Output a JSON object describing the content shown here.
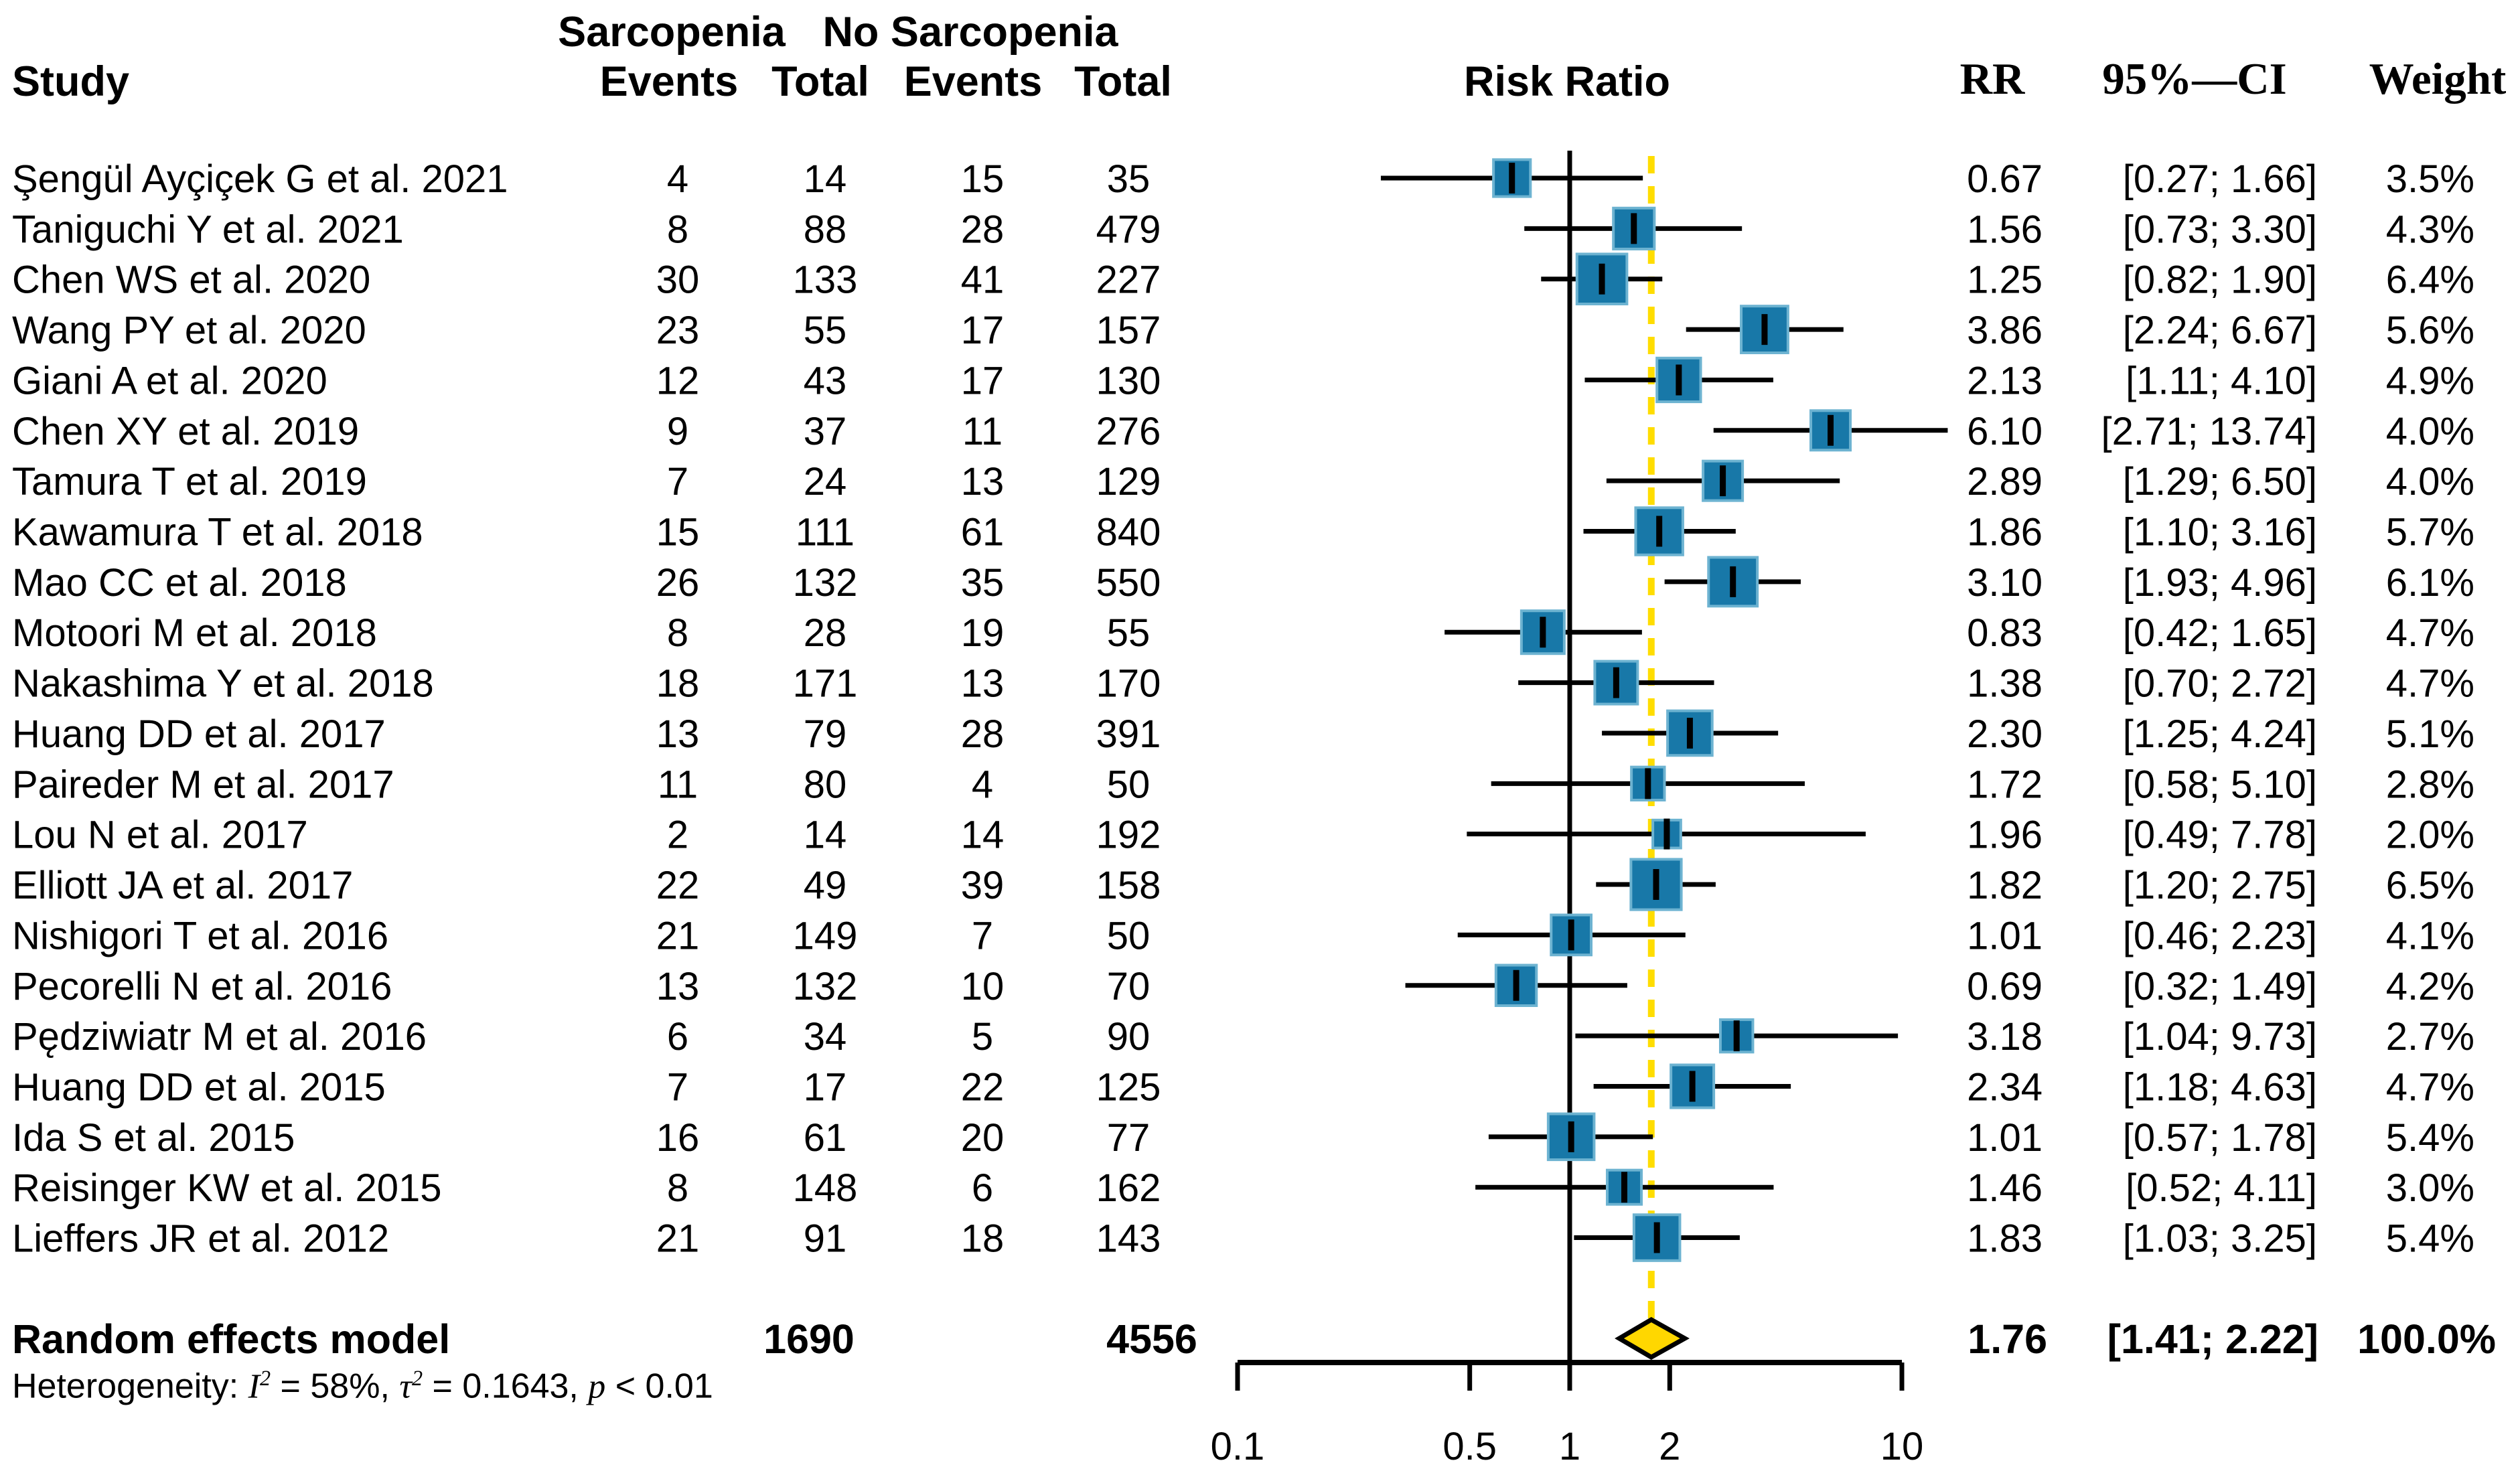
{
  "figure": {
    "headers": {
      "study": "Study",
      "group1": "Sarcopenia",
      "group2": "No Sarcopenia",
      "events1": "Events",
      "total1": "Total",
      "events2": "Events",
      "total2": "Total",
      "risk_ratio": "Risk Ratio",
      "rr": "RR",
      "ci": "95%—CI",
      "weight": "Weight"
    },
    "heterogeneity": {
      "prefix": "Heterogeneity: ",
      "i": "I",
      "i_sup": "2",
      "seg1": " = 58%, ",
      "tau": "τ",
      "tau_sup": "2",
      "seg2": " = 0.1643, ",
      "p": "p",
      "seg3": " < 0.01"
    }
  },
  "chart_data": {
    "type": "forest",
    "x_scale": "log10",
    "x_min": 0.1,
    "x_max": 10,
    "x_ticks": [
      0.1,
      0.5,
      1,
      2,
      10
    ],
    "x_tick_labels": [
      "0.1",
      "0.5",
      "1",
      "2",
      "10"
    ],
    "null_line": 1,
    "effect_measure": "Risk Ratio",
    "studies": [
      {
        "name": "Şengül Ayçiçek G et al. 2021",
        "e1": "4",
        "t1": "14",
        "e2": "15",
        "t2": "35",
        "rr": 0.67,
        "lo": 0.27,
        "hi": 1.66,
        "rr_label": "0.67",
        "ci_label": "[0.27; 1.66]",
        "weight": 3.5,
        "weight_label": "3.5%"
      },
      {
        "name": "Taniguchi Y et al. 2021",
        "e1": "8",
        "t1": "88",
        "e2": "28",
        "t2": "479",
        "rr": 1.56,
        "lo": 0.73,
        "hi": 3.3,
        "rr_label": "1.56",
        "ci_label": "[0.73; 3.30]",
        "weight": 4.3,
        "weight_label": "4.3%"
      },
      {
        "name": "Chen WS et al. 2020",
        "e1": "30",
        "t1": "133",
        "e2": "41",
        "t2": "227",
        "rr": 1.25,
        "lo": 0.82,
        "hi": 1.9,
        "rr_label": "1.25",
        "ci_label": "[0.82; 1.90]",
        "weight": 6.4,
        "weight_label": "6.4%"
      },
      {
        "name": "Wang PY et al. 2020",
        "e1": "23",
        "t1": "55",
        "e2": "17",
        "t2": "157",
        "rr": 3.86,
        "lo": 2.24,
        "hi": 6.67,
        "rr_label": "3.86",
        "ci_label": "[2.24; 6.67]",
        "weight": 5.6,
        "weight_label": "5.6%"
      },
      {
        "name": "Giani A et al. 2020",
        "e1": "12",
        "t1": "43",
        "e2": "17",
        "t2": "130",
        "rr": 2.13,
        "lo": 1.11,
        "hi": 4.1,
        "rr_label": "2.13",
        "ci_label": "[1.11; 4.10]",
        "weight": 4.9,
        "weight_label": "4.9%"
      },
      {
        "name": "Chen XY et al. 2019",
        "e1": "9",
        "t1": "37",
        "e2": "11",
        "t2": "276",
        "rr": 6.1,
        "lo": 2.71,
        "hi": 13.74,
        "rr_label": "6.10",
        "ci_label": "[2.71; 13.74]",
        "weight": 4.0,
        "weight_label": "4.0%"
      },
      {
        "name": "Tamura T et al. 2019",
        "e1": "7",
        "t1": "24",
        "e2": "13",
        "t2": "129",
        "rr": 2.89,
        "lo": 1.29,
        "hi": 6.5,
        "rr_label": "2.89",
        "ci_label": "[1.29; 6.50]",
        "weight": 4.0,
        "weight_label": "4.0%"
      },
      {
        "name": "Kawamura T et al. 2018",
        "e1": "15",
        "t1": "111",
        "e2": "61",
        "t2": "840",
        "rr": 1.86,
        "lo": 1.1,
        "hi": 3.16,
        "rr_label": "1.86",
        "ci_label": "[1.10; 3.16]",
        "weight": 5.7,
        "weight_label": "5.7%"
      },
      {
        "name": "Mao CC et al. 2018",
        "e1": "26",
        "t1": "132",
        "e2": "35",
        "t2": "550",
        "rr": 3.1,
        "lo": 1.93,
        "hi": 4.96,
        "rr_label": "3.10",
        "ci_label": "[1.93; 4.96]",
        "weight": 6.1,
        "weight_label": "6.1%"
      },
      {
        "name": "Motoori M et al. 2018",
        "e1": "8",
        "t1": "28",
        "e2": "19",
        "t2": "55",
        "rr": 0.83,
        "lo": 0.42,
        "hi": 1.65,
        "rr_label": "0.83",
        "ci_label": "[0.42; 1.65]",
        "weight": 4.7,
        "weight_label": "4.7%"
      },
      {
        "name": "Nakashima Y et al. 2018",
        "e1": "18",
        "t1": "171",
        "e2": "13",
        "t2": "170",
        "rr": 1.38,
        "lo": 0.7,
        "hi": 2.72,
        "rr_label": "1.38",
        "ci_label": "[0.70; 2.72]",
        "weight": 4.7,
        "weight_label": "4.7%"
      },
      {
        "name": "Huang DD et al. 2017",
        "e1": "13",
        "t1": "79",
        "e2": "28",
        "t2": "391",
        "rr": 2.3,
        "lo": 1.25,
        "hi": 4.24,
        "rr_label": "2.30",
        "ci_label": "[1.25; 4.24]",
        "weight": 5.1,
        "weight_label": "5.1%"
      },
      {
        "name": "Paireder M et al. 2017",
        "e1": "11",
        "t1": "80",
        "e2": "4",
        "t2": "50",
        "rr": 1.72,
        "lo": 0.58,
        "hi": 5.1,
        "rr_label": "1.72",
        "ci_label": "[0.58; 5.10]",
        "weight": 2.8,
        "weight_label": "2.8%"
      },
      {
        "name": "Lou N et al. 2017",
        "e1": "2",
        "t1": "14",
        "e2": "14",
        "t2": "192",
        "rr": 1.96,
        "lo": 0.49,
        "hi": 7.78,
        "rr_label": "1.96",
        "ci_label": "[0.49; 7.78]",
        "weight": 2.0,
        "weight_label": "2.0%"
      },
      {
        "name": "Elliott JA et al. 2017",
        "e1": "22",
        "t1": "49",
        "e2": "39",
        "t2": "158",
        "rr": 1.82,
        "lo": 1.2,
        "hi": 2.75,
        "rr_label": "1.82",
        "ci_label": "[1.20; 2.75]",
        "weight": 6.5,
        "weight_label": "6.5%"
      },
      {
        "name": "Nishigori T et al. 2016",
        "e1": "21",
        "t1": "149",
        "e2": "7",
        "t2": "50",
        "rr": 1.01,
        "lo": 0.46,
        "hi": 2.23,
        "rr_label": "1.01",
        "ci_label": "[0.46; 2.23]",
        "weight": 4.1,
        "weight_label": "4.1%"
      },
      {
        "name": "Pecorelli N et al. 2016",
        "e1": "13",
        "t1": "132",
        "e2": "10",
        "t2": "70",
        "rr": 0.69,
        "lo": 0.32,
        "hi": 1.49,
        "rr_label": "0.69",
        "ci_label": "[0.32; 1.49]",
        "weight": 4.2,
        "weight_label": "4.2%"
      },
      {
        "name": "Pędziwiatr M et al. 2016",
        "e1": "6",
        "t1": "34",
        "e2": "5",
        "t2": "90",
        "rr": 3.18,
        "lo": 1.04,
        "hi": 9.73,
        "rr_label": "3.18",
        "ci_label": "[1.04; 9.73]",
        "weight": 2.7,
        "weight_label": "2.7%"
      },
      {
        "name": "Huang DD et al. 2015",
        "e1": "7",
        "t1": "17",
        "e2": "22",
        "t2": "125",
        "rr": 2.34,
        "lo": 1.18,
        "hi": 4.63,
        "rr_label": "2.34",
        "ci_label": "[1.18; 4.63]",
        "weight": 4.7,
        "weight_label": "4.7%"
      },
      {
        "name": "Ida S et al. 2015",
        "e1": "16",
        "t1": "61",
        "e2": "20",
        "t2": "77",
        "rr": 1.01,
        "lo": 0.57,
        "hi": 1.78,
        "rr_label": "1.01",
        "ci_label": "[0.57; 1.78]",
        "weight": 5.4,
        "weight_label": "5.4%"
      },
      {
        "name": "Reisinger KW et al. 2015",
        "e1": "8",
        "t1": "148",
        "e2": "6",
        "t2": "162",
        "rr": 1.46,
        "lo": 0.52,
        "hi": 4.11,
        "rr_label": "1.46",
        "ci_label": "[0.52; 4.11]",
        "weight": 3.0,
        "weight_label": "3.0%"
      },
      {
        "name": "Lieffers JR et al. 2012",
        "e1": "21",
        "t1": "91",
        "e2": "18",
        "t2": "143",
        "rr": 1.83,
        "lo": 1.03,
        "hi": 3.25,
        "rr_label": "1.83",
        "ci_label": "[1.03; 3.25]",
        "weight": 5.4,
        "weight_label": "5.4%"
      }
    ],
    "summary": {
      "label": "Random effects model",
      "total1": "1690",
      "total2": "4556",
      "rr": 1.76,
      "lo": 1.41,
      "hi": 2.22,
      "rr_label": "1.76",
      "ci_label": "[1.41; 2.22]",
      "weight_label": "100.0%"
    },
    "colors": {
      "square": "#1878a8",
      "square_edge": "#6db3d1",
      "diamond": "#ffd700",
      "pooled_dash": "#ffdd00",
      "line": "#000000"
    }
  }
}
